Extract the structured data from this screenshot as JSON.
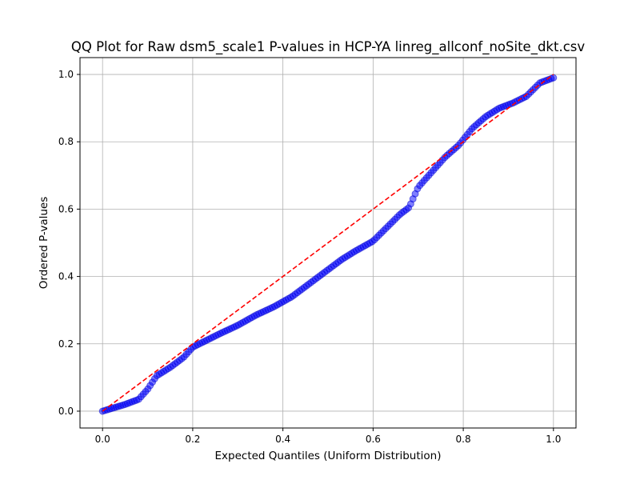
{
  "chart_data": {
    "type": "scatter",
    "title": "QQ Plot for Raw dsm5_scale1 P-values in HCP-YA linreg_allconf_noSite_dkt.csv",
    "xlabel": "Expected Quantiles (Uniform Distribution)",
    "ylabel": "Ordered P-values",
    "xlim": [
      -0.05,
      1.05
    ],
    "ylim": [
      -0.05,
      1.05
    ],
    "xticks": [
      0.0,
      0.2,
      0.4,
      0.6,
      0.8,
      1.0
    ],
    "yticks": [
      0.0,
      0.2,
      0.4,
      0.6,
      0.8,
      1.0
    ],
    "xtick_labels": [
      "0.0",
      "0.2",
      "0.4",
      "0.6",
      "0.8",
      "1.0"
    ],
    "ytick_labels": [
      "0.0",
      "0.2",
      "0.4",
      "0.6",
      "0.8",
      "1.0"
    ],
    "grid": true,
    "point_color": "#0000ff",
    "point_edge_color": "#0000cc",
    "point_alpha": 0.5,
    "reference_line": {
      "x": [
        0.0,
        1.0
      ],
      "y": [
        0.0,
        1.0
      ],
      "color": "#ff0000",
      "style": "dashed"
    },
    "n_points": 200,
    "quantile_curve": {
      "x": [
        0.0,
        0.02,
        0.05,
        0.08,
        0.1,
        0.12,
        0.15,
        0.18,
        0.2,
        0.23,
        0.26,
        0.3,
        0.34,
        0.38,
        0.42,
        0.46,
        0.5,
        0.53,
        0.56,
        0.6,
        0.63,
        0.66,
        0.68,
        0.7,
        0.73,
        0.76,
        0.79,
        0.82,
        0.85,
        0.88,
        0.91,
        0.94,
        0.97,
        1.0
      ],
      "y": [
        0.0,
        0.008,
        0.02,
        0.035,
        0.065,
        0.105,
        0.13,
        0.16,
        0.19,
        0.21,
        0.23,
        0.255,
        0.285,
        0.31,
        0.34,
        0.38,
        0.42,
        0.45,
        0.475,
        0.505,
        0.545,
        0.585,
        0.605,
        0.665,
        0.71,
        0.755,
        0.79,
        0.84,
        0.875,
        0.9,
        0.915,
        0.935,
        0.975,
        0.99
      ]
    }
  }
}
